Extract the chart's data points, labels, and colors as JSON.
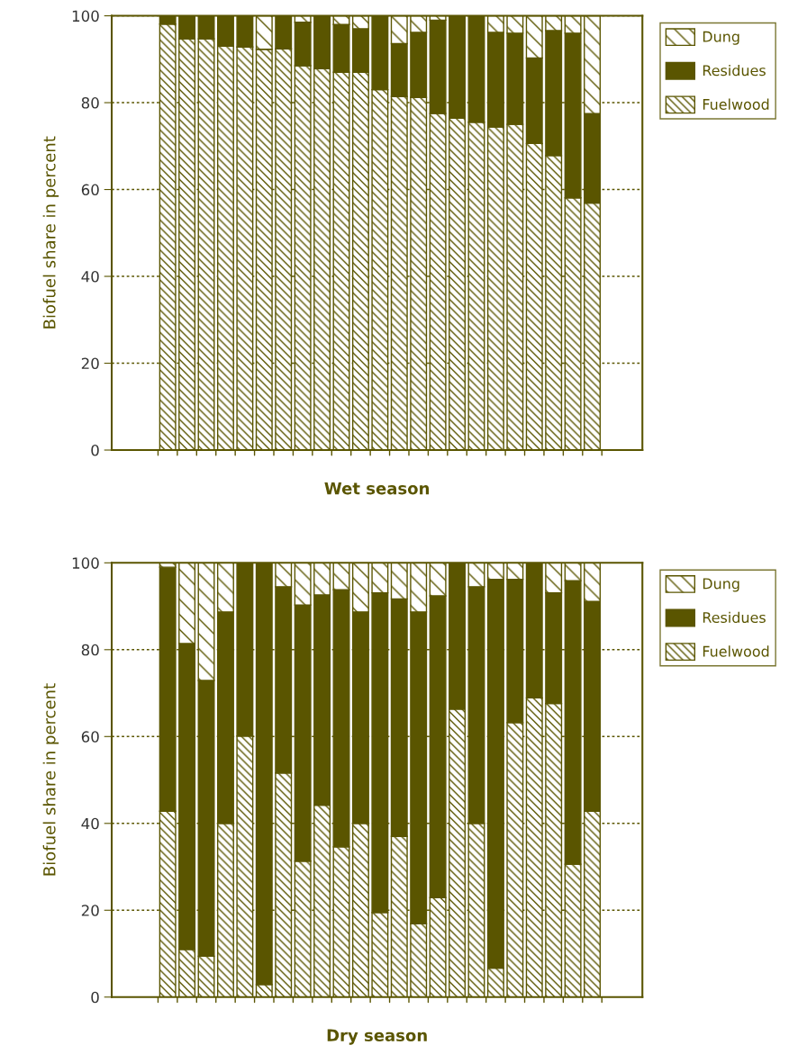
{
  "chart_data": [
    {
      "type": "bar",
      "stacked": true,
      "xlabel": "Wet season",
      "ylabel": "Biofuel share in percent",
      "categories": [
        null,
        null,
        null,
        null,
        null,
        null,
        null,
        null,
        null,
        null,
        null,
        null,
        null,
        null,
        null,
        null,
        null,
        null,
        null,
        null,
        null,
        null,
        null
      ],
      "ylim": [
        0,
        100
      ],
      "yticks": [
        0,
        20,
        40,
        60,
        80,
        100
      ],
      "grid": "y",
      "legend": "top right",
      "series": [
        {
          "name": "Fuelwood",
          "color": "#5a5500",
          "values": [
            98.1,
            94.7,
            94.7,
            93.0,
            92.8,
            92.3,
            92.4,
            88.5,
            87.8,
            87.0,
            87.0,
            83.0,
            81.4,
            81.2,
            77.5,
            76.4,
            75.5,
            74.4,
            75.0,
            70.6,
            67.8,
            58.1,
            56.9
          ]
        },
        {
          "name": "Residues",
          "color": "#5a5500",
          "values": [
            1.9,
            5.3,
            5.3,
            7.0,
            7.2,
            null,
            7.6,
            10.0,
            12.2,
            11.0,
            10.0,
            17.0,
            12.2,
            15.0,
            21.5,
            23.6,
            24.5,
            21.8,
            21.0,
            19.7,
            28.8,
            37.9,
            20.6
          ]
        },
        {
          "name": "Dung",
          "color": "#5a5500",
          "values": [
            null,
            null,
            null,
            null,
            null,
            7.7,
            null,
            1.5,
            null,
            2.0,
            3.0,
            null,
            6.4,
            3.8,
            1.0,
            null,
            null,
            3.8,
            4.0,
            9.7,
            3.4,
            4.0,
            22.5
          ]
        }
      ]
    },
    {
      "type": "bar",
      "stacked": true,
      "xlabel": "Dry season",
      "ylabel": "Biofuel share in percent",
      "categories": [
        null,
        null,
        null,
        null,
        null,
        null,
        null,
        null,
        null,
        null,
        null,
        null,
        null,
        null,
        null,
        null,
        null,
        null,
        null,
        null,
        null,
        null,
        null
      ],
      "ylim": [
        0,
        100
      ],
      "yticks": [
        0,
        20,
        40,
        60,
        80,
        100
      ],
      "grid": "y",
      "legend": "top right",
      "series": [
        {
          "name": "Fuelwood",
          "color": "#5a5500",
          "values": [
            42.8,
            11.0,
            9.4,
            40.0,
            60.1,
            2.9,
            51.6,
            31.3,
            44.2,
            34.6,
            40.0,
            19.5,
            37.0,
            16.9,
            22.9,
            66.3,
            40.0,
            6.7,
            63.2,
            68.9,
            67.6,
            30.6,
            42.8
          ]
        },
        {
          "name": "Residues",
          "color": "#5a5500",
          "values": [
            56.2,
            70.4,
            63.5,
            48.7,
            39.9,
            97.1,
            42.9,
            59.0,
            48.4,
            59.2,
            48.7,
            73.6,
            54.7,
            71.8,
            69.5,
            33.7,
            54.5,
            89.5,
            33.0,
            31.1,
            25.5,
            65.3,
            48.3
          ]
        },
        {
          "name": "Dung",
          "color": "#5a5500",
          "values": [
            1.0,
            18.6,
            27.1,
            11.3,
            null,
            null,
            5.5,
            9.7,
            7.4,
            6.2,
            11.3,
            6.9,
            8.3,
            11.3,
            7.6,
            null,
            5.5,
            3.8,
            3.8,
            null,
            6.9,
            4.1,
            8.9
          ]
        }
      ]
    }
  ]
}
